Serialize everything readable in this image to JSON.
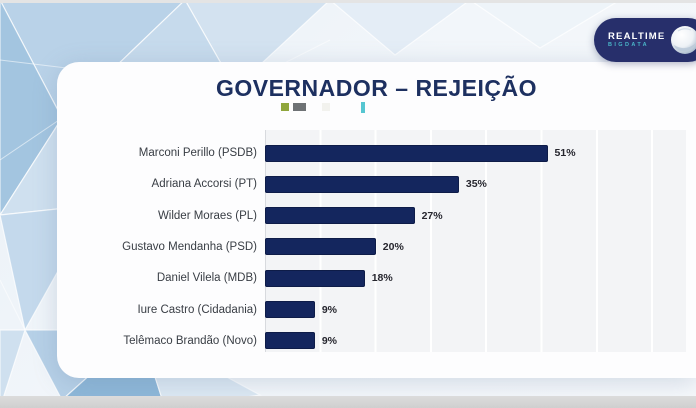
{
  "brand": {
    "name": "REALTIME",
    "subname": "BIGDATA"
  },
  "header": {
    "title": "GOVERNADOR – REJEIÇÃO"
  },
  "legend_marks": [
    {
      "name": "green-mark",
      "color": "#8fa63c"
    },
    {
      "name": "gray-mark",
      "color": "#6e7275"
    },
    {
      "name": "white-mark",
      "color": "#f2f2ee"
    },
    {
      "name": "teal-mark",
      "color": "#56c6d1"
    }
  ],
  "chart_data": {
    "type": "bar",
    "orientation": "horizontal",
    "title": "GOVERNADOR – REJEIÇÃO",
    "categories": [
      "Marconi Perillo (PSDB)",
      "Adriana Accorsi (PT)",
      "Wilder Moraes (PL)",
      "Gustavo Mendanha (PSD)",
      "Daniel Vilela (MDB)",
      "Iure Castro (Cidadania)",
      "Telêmaco Brandão (Novo)"
    ],
    "values": [
      51,
      35,
      27,
      20,
      18,
      9,
      9
    ],
    "value_labels": [
      "51%",
      "35%",
      "27%",
      "20%",
      "18%",
      "9%",
      "9%"
    ],
    "xlabel": "",
    "ylabel": "",
    "xlim": [
      0,
      76
    ],
    "gridline_step": 10,
    "grid": true,
    "legend_position": "none",
    "bar_color": "#14265e"
  },
  "colors": {
    "bar": "#14265e",
    "title": "#1d3060",
    "card_bg": "#fdfdfe",
    "plot_bg": "#f3f4f6",
    "page_bg": "#e9f0f7",
    "logo_bg": "#272f6b",
    "logo_subtext": "#4ab5c8"
  }
}
